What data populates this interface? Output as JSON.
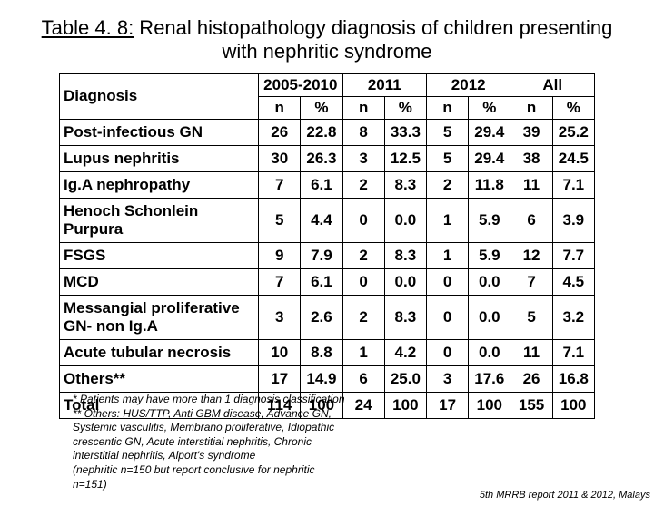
{
  "title_prefix": "Table 4. 8:",
  "title_rest": " Renal histopathology diagnosis of children presenting with nephritic syndrome",
  "headers": {
    "diag": "Diagnosis",
    "period1": "2005-2010",
    "period2": "2011",
    "period3": "2012",
    "period4": "All",
    "n": "n",
    "pct": "%"
  },
  "rows": [
    {
      "d": "Post-infectious GN",
      "v": [
        "26",
        "22.8",
        "8",
        "33.3",
        "5",
        "29.4",
        "39",
        "25.2"
      ]
    },
    {
      "d": "Lupus nephritis",
      "v": [
        "30",
        "26.3",
        "3",
        "12.5",
        "5",
        "29.4",
        "38",
        "24.5"
      ]
    },
    {
      "d": "Ig.A nephropathy",
      "v": [
        "7",
        "6.1",
        "2",
        "8.3",
        "2",
        "11.8",
        "11",
        "7.1"
      ]
    },
    {
      "d": "Henoch Schonlein Purpura",
      "v": [
        "5",
        "4.4",
        "0",
        "0.0",
        "1",
        "5.9",
        "6",
        "3.9"
      ]
    },
    {
      "d": "FSGS",
      "v": [
        "9",
        "7.9",
        "2",
        "8.3",
        "1",
        "5.9",
        "12",
        "7.7"
      ]
    },
    {
      "d": "MCD",
      "v": [
        "7",
        "6.1",
        "0",
        "0.0",
        "0",
        "0.0",
        "7",
        "4.5"
      ]
    },
    {
      "d": "Messangial proliferative GN- non Ig.A",
      "v": [
        "3",
        "2.6",
        "2",
        "8.3",
        "0",
        "0.0",
        "5",
        "3.2"
      ]
    },
    {
      "d": "Acute tubular necrosis",
      "v": [
        "10",
        "8.8",
        "1",
        "4.2",
        "0",
        "0.0",
        "11",
        "7.1"
      ]
    },
    {
      "d": "Others**",
      "v": [
        "17",
        "14.9",
        "6",
        "25.0",
        "3",
        "17.6",
        "26",
        "16.8"
      ]
    },
    {
      "d": "Total",
      "v": [
        "114",
        "100",
        "24",
        "100",
        "17",
        "100",
        "155",
        "100"
      ]
    }
  ],
  "footnotes": [
    "* Patients may have more than 1 diagnosis classification",
    "** Others: HUS/TTP, Anti GBM disease, Advance GN,",
    "Systemic vasculitis, Membrano proliferative, Idiopathic",
    "crescentic GN, Acute interstitial nephritis, Chronic",
    "interstitial nephritis, Alport's syndrome",
    "(nephritic n=150 but report conclusive for nephritic",
    "n=151)"
  ],
  "bottom_ref": "5th MRRB report 2011 & 2012, Malays"
}
